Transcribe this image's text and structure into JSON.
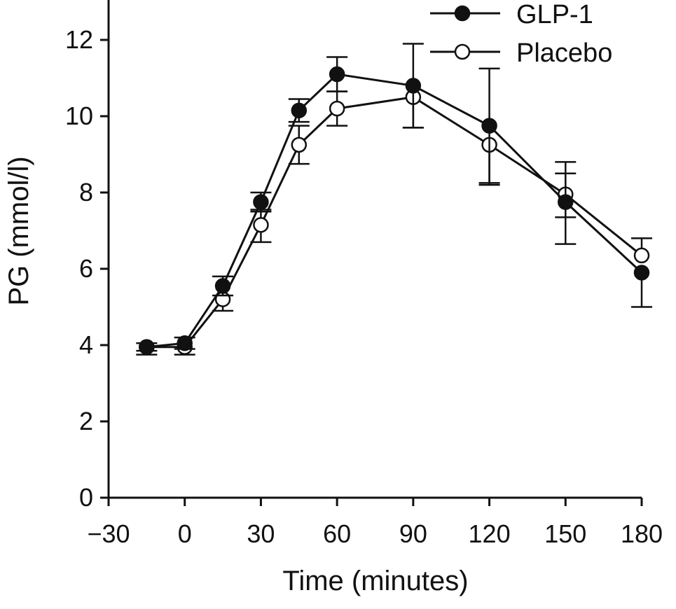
{
  "chart_data": {
    "type": "line",
    "xlabel": "Time (minutes)",
    "ylabel": "PG (mmol/l)",
    "xlim": [
      -30,
      180
    ],
    "ylim": [
      0,
      13
    ],
    "xticks": [
      -30,
      0,
      30,
      60,
      90,
      120,
      150,
      180
    ],
    "xtick_labels": [
      "−30",
      "0",
      "30",
      "60",
      "90",
      "120",
      "150",
      "180"
    ],
    "yticks": [
      0,
      2,
      4,
      6,
      8,
      10,
      12
    ],
    "ytick_labels": [
      "0",
      "2",
      "4",
      "6",
      "8",
      "10",
      "12"
    ],
    "grid": false,
    "legend_position": "top-right",
    "series": [
      {
        "name": "GLP-1",
        "marker": "filled-circle",
        "color": "#111111",
        "x": [
          -15,
          0,
          15,
          30,
          45,
          60,
          90,
          120,
          150,
          180
        ],
        "y": [
          3.95,
          4.05,
          5.55,
          7.75,
          10.15,
          11.1,
          10.8,
          9.75,
          7.75,
          5.9
        ],
        "err_plus": [
          0.1,
          0.15,
          0.25,
          0.25,
          0.3,
          0.45,
          1.1,
          1.5,
          0.75,
          0.0
        ],
        "err_minus": [
          0.1,
          0.15,
          0.25,
          0.25,
          0.3,
          0.45,
          1.1,
          1.5,
          1.1,
          0.9
        ]
      },
      {
        "name": "Placebo",
        "marker": "open-circle",
        "color": "#111111",
        "x": [
          -15,
          0,
          15,
          30,
          45,
          60,
          90,
          120,
          150,
          180
        ],
        "y": [
          3.95,
          3.95,
          5.2,
          7.15,
          9.25,
          10.2,
          10.5,
          9.25,
          7.95,
          6.35
        ],
        "err_plus": [
          0.0,
          0.0,
          0.0,
          0.4,
          0.5,
          0.45,
          0.0,
          0.0,
          0.85,
          0.45
        ],
        "err_minus": [
          0.2,
          0.2,
          0.3,
          0.45,
          0.5,
          0.45,
          0.8,
          1.05,
          0.6,
          0.0
        ]
      }
    ]
  }
}
